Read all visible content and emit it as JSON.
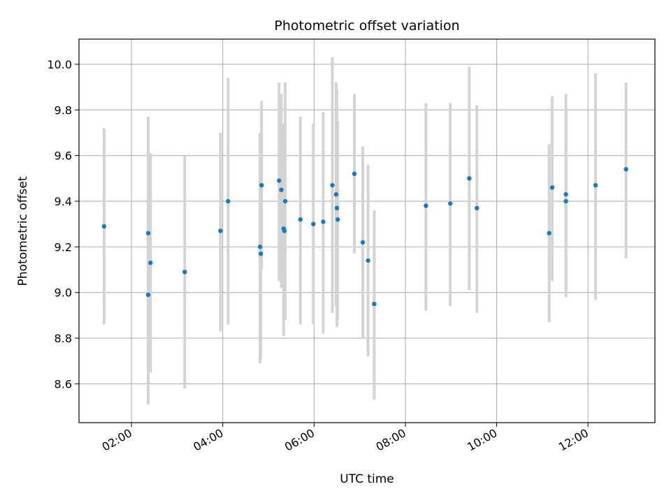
{
  "chart_data": {
    "type": "scatter",
    "title": "Photometric offset variation",
    "xlabel": "UTC time",
    "ylabel": "Photometric offset",
    "xlim": [
      "00:51",
      "13:28"
    ],
    "ylim": [
      8.43,
      10.11
    ],
    "grid": true,
    "x_ticks": [
      "02:00",
      "04:00",
      "06:00",
      "08:00",
      "10:00",
      "12:00"
    ],
    "y_ticks": [
      "8.6",
      "8.8",
      "9.0",
      "9.2",
      "9.4",
      "9.6",
      "9.8",
      "10.0"
    ],
    "series": [
      {
        "point_color": "#1f77b4",
        "errorbar_color": "#d3d3d3",
        "points": [
          {
            "x": "01:24",
            "y": 9.29,
            "y_low": 8.86,
            "y_high": 9.72
          },
          {
            "x": "02:22",
            "y": 9.26,
            "y_low": 8.51,
            "y_high": 9.77
          },
          {
            "x": "02:22",
            "y": 8.99,
            "y_low": 8.55,
            "y_high": 9.4
          },
          {
            "x": "02:25",
            "y": 9.13,
            "y_low": 8.65,
            "y_high": 9.61
          },
          {
            "x": "03:10",
            "y": 9.09,
            "y_low": 8.58,
            "y_high": 9.6
          },
          {
            "x": "03:57",
            "y": 9.27,
            "y_low": 8.83,
            "y_high": 9.7
          },
          {
            "x": "04:07",
            "y": 9.4,
            "y_low": 8.86,
            "y_high": 9.94
          },
          {
            "x": "04:49",
            "y": 9.2,
            "y_low": 8.69,
            "y_high": 9.7
          },
          {
            "x": "04:50",
            "y": 9.17,
            "y_low": 8.71,
            "y_high": 9.63
          },
          {
            "x": "04:51",
            "y": 9.47,
            "y_low": 9.1,
            "y_high": 9.84
          },
          {
            "x": "05:14",
            "y": 9.49,
            "y_low": 9.05,
            "y_high": 9.92
          },
          {
            "x": "05:17",
            "y": 9.45,
            "y_low": 9.02,
            "y_high": 9.87
          },
          {
            "x": "05:20",
            "y": 9.28,
            "y_low": 8.81,
            "y_high": 9.74
          },
          {
            "x": "05:21",
            "y": 9.27,
            "y_low": 8.88,
            "y_high": 9.66
          },
          {
            "x": "05:22",
            "y": 9.4,
            "y_low": 8.88,
            "y_high": 9.92
          },
          {
            "x": "05:42",
            "y": 9.32,
            "y_low": 8.86,
            "y_high": 9.77
          },
          {
            "x": "05:59",
            "y": 9.3,
            "y_low": 8.86,
            "y_high": 9.74
          },
          {
            "x": "06:12",
            "y": 9.31,
            "y_low": 8.82,
            "y_high": 9.79
          },
          {
            "x": "06:24",
            "y": 9.47,
            "y_low": 8.91,
            "y_high": 10.03
          },
          {
            "x": "06:29",
            "y": 9.43,
            "y_low": 8.94,
            "y_high": 9.92
          },
          {
            "x": "06:30",
            "y": 9.37,
            "y_low": 8.85,
            "y_high": 9.89
          },
          {
            "x": "06:31",
            "y": 9.32,
            "y_low": 8.88,
            "y_high": 9.75
          },
          {
            "x": "06:53",
            "y": 9.52,
            "y_low": 9.17,
            "y_high": 9.87
          },
          {
            "x": "07:04",
            "y": 9.22,
            "y_low": 8.8,
            "y_high": 9.64
          },
          {
            "x": "07:11",
            "y": 9.14,
            "y_low": 8.72,
            "y_high": 9.56
          },
          {
            "x": "07:19",
            "y": 8.95,
            "y_low": 8.53,
            "y_high": 9.36
          },
          {
            "x": "08:27",
            "y": 9.38,
            "y_low": 8.92,
            "y_high": 9.83
          },
          {
            "x": "08:59",
            "y": 9.39,
            "y_low": 8.94,
            "y_high": 9.83
          },
          {
            "x": "09:24",
            "y": 9.5,
            "y_low": 9.01,
            "y_high": 9.99
          },
          {
            "x": "09:34",
            "y": 9.37,
            "y_low": 8.91,
            "y_high": 9.82
          },
          {
            "x": "11:09",
            "y": 9.26,
            "y_low": 8.87,
            "y_high": 9.65
          },
          {
            "x": "11:13",
            "y": 9.46,
            "y_low": 9.05,
            "y_high": 9.86
          },
          {
            "x": "11:31",
            "y": 9.43,
            "y_low": 8.98,
            "y_high": 9.87
          },
          {
            "x": "11:31",
            "y": 9.4,
            "y_low": 9.0,
            "y_high": 9.8
          },
          {
            "x": "12:10",
            "y": 9.47,
            "y_low": 8.97,
            "y_high": 9.96
          },
          {
            "x": "12:50",
            "y": 9.54,
            "y_low": 9.15,
            "y_high": 9.92
          }
        ]
      }
    ]
  }
}
